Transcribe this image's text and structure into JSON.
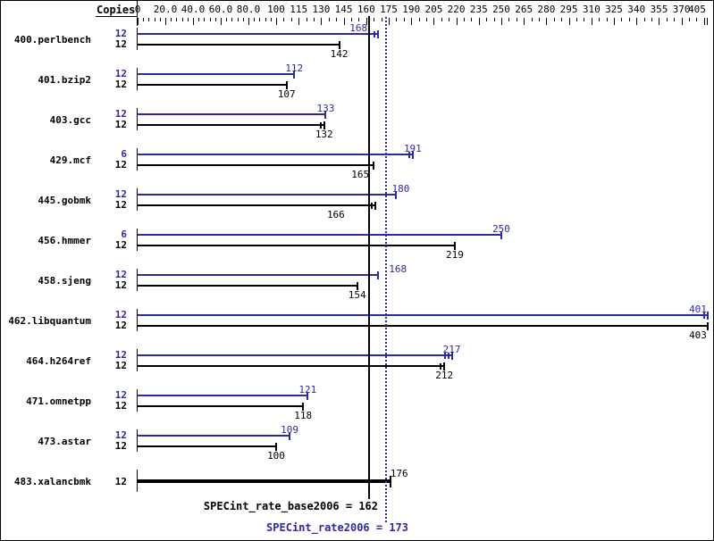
{
  "header": {
    "copies_label": "Copies"
  },
  "colors": {
    "peak": "#2b2ba0",
    "base": "#000000",
    "background": "#ffffff"
  },
  "chart_data": {
    "type": "bar",
    "orientation": "horizontal",
    "axis": {
      "tick_labels": [
        "0",
        "20.0",
        "40.0",
        "60.0",
        "80.0",
        "100",
        "115",
        "130",
        "145",
        "160",
        "175",
        "190",
        "205",
        "220",
        "235",
        "250",
        "265",
        "280",
        "295",
        "310",
        "325",
        "340",
        "355",
        "370",
        "405"
      ],
      "range": [
        0,
        405
      ],
      "unlabeled_major_ticks": [
        385
      ],
      "grid": false
    },
    "series_legend": [
      {
        "name": "peak",
        "color": "#2b2ba0"
      },
      {
        "name": "base",
        "color": "#000000"
      }
    ],
    "benchmarks": [
      {
        "name": "400.perlbench",
        "peak": {
          "copies": "12",
          "value": 168,
          "end_ticks": 2,
          "label_dx": -22
        },
        "base": {
          "copies": "12",
          "value": 142,
          "end_ticks": 1
        }
      },
      {
        "name": "401.bzip2",
        "peak": {
          "copies": "12",
          "value": 112,
          "end_ticks": 1
        },
        "base": {
          "copies": "12",
          "value": 107,
          "end_ticks": 1
        }
      },
      {
        "name": "403.gcc",
        "peak": {
          "copies": "12",
          "value": 133,
          "end_ticks": 1
        },
        "base": {
          "copies": "12",
          "value": 132,
          "end_ticks": 2
        }
      },
      {
        "name": "429.mcf",
        "peak": {
          "copies": "6",
          "value": 191,
          "end_ticks": 2
        },
        "base": {
          "copies": "12",
          "value": 165,
          "end_ticks": 1,
          "label_dx": -15
        }
      },
      {
        "name": "445.gobmk",
        "peak": {
          "copies": "12",
          "value": 180,
          "end_ticks": 1,
          "label_dx": 5
        },
        "base": {
          "copies": "12",
          "value": 166,
          "end_ticks": 2,
          "label_dx": -44
        }
      },
      {
        "name": "456.hmmer",
        "peak": {
          "copies": "6",
          "value": 250,
          "end_ticks": 1
        },
        "base": {
          "copies": "12",
          "value": 219,
          "end_ticks": 1
        }
      },
      {
        "name": "458.sjeng",
        "peak": {
          "copies": "12",
          "value": 168,
          "end_ticks": 1,
          "label_dx": 22
        },
        "base": {
          "copies": "12",
          "value": 154,
          "end_ticks": 1
        }
      },
      {
        "name": "462.libquantum",
        "peak": {
          "copies": "12",
          "value": 401,
          "end_ticks": 2,
          "label_dx": -11
        },
        "base": {
          "copies": "12",
          "value": 403,
          "end_ticks": 1,
          "label_dx": -11
        }
      },
      {
        "name": "464.h264ref",
        "peak": {
          "copies": "12",
          "value": 217,
          "end_ticks": 3
        },
        "base": {
          "copies": "12",
          "value": 212,
          "end_ticks": 2
        }
      },
      {
        "name": "471.omnetpp",
        "peak": {
          "copies": "12",
          "value": 121,
          "end_ticks": 1
        },
        "base": {
          "copies": "12",
          "value": 118,
          "end_ticks": 1
        }
      },
      {
        "name": "473.astar",
        "peak": {
          "copies": "12",
          "value": 109,
          "end_ticks": 1
        },
        "base": {
          "copies": "12",
          "value": 100,
          "end_ticks": 1
        }
      },
      {
        "name": "483.xalancbmk",
        "single": {
          "copies": "12",
          "value": 176,
          "end_ticks": 1,
          "label_dx": 10
        }
      }
    ],
    "reference_lines": [
      {
        "name": "base_mean",
        "value": 162,
        "style": "solid",
        "color": "#000000",
        "label": "SPECint_rate_base2006 = 162"
      },
      {
        "name": "peak_mean",
        "value": 173,
        "style": "dotted",
        "color": "#2b2ba0",
        "label": "SPECint_rate2006 = 173"
      }
    ]
  },
  "summary": {
    "base_line": "SPECint_rate_base2006 = 162",
    "peak_line": "SPECint_rate2006 = 173"
  }
}
